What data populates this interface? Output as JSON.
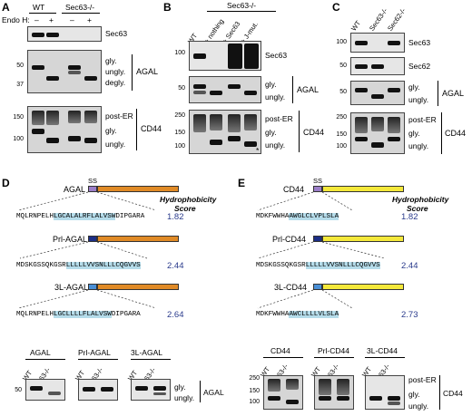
{
  "panels": {
    "A": {
      "label": "A",
      "lanes": {
        "wt": "WT",
        "ko": "Sec63-/-"
      },
      "endo_h": "Endo H:",
      "signs": [
        "–",
        "+",
        "–",
        "+"
      ],
      "blots": {
        "sec63": {
          "name": "Sec63"
        },
        "agal": {
          "name": "AGAL",
          "bands": [
            "gly.",
            "ungly.",
            "degly."
          ],
          "ticks": [
            "50",
            "37"
          ]
        },
        "cd44": {
          "name": "CD44",
          "bands": [
            "post-ER",
            "gly.",
            "ungly."
          ],
          "ticks": [
            "150",
            "100"
          ]
        }
      }
    },
    "B": {
      "label": "B",
      "header": "Sec63-/-",
      "lanes": [
        "WT",
        "+ nothing",
        "+ Sec63",
        "+ J-mut."
      ],
      "blots": {
        "sec63": {
          "name": "Sec63",
          "ticks": [
            "100"
          ]
        },
        "agal": {
          "name": "AGAL",
          "bands": [
            "gly.",
            "ungly."
          ],
          "ticks": [
            "50"
          ]
        },
        "cd44": {
          "name": "CD44",
          "bands": [
            "post-ER",
            "gly.",
            "ungly."
          ],
          "ticks": [
            "250",
            "150",
            "100"
          ],
          "marker": "*"
        }
      }
    },
    "C": {
      "label": "C",
      "lanes": [
        "WT",
        "Sec63-/-",
        "Sec62-/-"
      ],
      "blots": {
        "sec63": {
          "name": "Sec63",
          "ticks": [
            "100"
          ]
        },
        "sec62": {
          "name": "Sec62",
          "ticks": [
            "50"
          ]
        },
        "agal": {
          "name": "AGAL",
          "bands": [
            "gly.",
            "ungly."
          ],
          "ticks": [
            "50"
          ]
        },
        "cd44": {
          "name": "CD44",
          "bands": [
            "post-ER",
            "gly.",
            "ungly."
          ],
          "ticks": [
            "250",
            "150",
            "100"
          ]
        }
      }
    },
    "D": {
      "label": "D",
      "constructs": [
        {
          "name": "AGAL",
          "ss": "SS",
          "seq_pre": "MQLRNPELH",
          "seq_hl": "LGCALALRFLALVSW",
          "seq_post": "DIPGARA",
          "score": "1.82"
        },
        {
          "name": "Prl-AGAL",
          "seq_pre": "MDSKGSSQKGSR",
          "seq_hl": "LLLLLVVSNLLLCQGVVS",
          "seq_post": "",
          "score": "2.44"
        },
        {
          "name": "3L-AGAL",
          "seq_pre": "MQLRNPELH",
          "seq_hl": "LGCLLLLFLALVSW",
          "seq_post": "DIPGARA",
          "score": "2.64"
        }
      ],
      "score_header": [
        "Hydrophobicity",
        "Score"
      ],
      "blots": [
        {
          "title": "AGAL",
          "lanes": [
            "WT",
            "63-/-"
          ]
        },
        {
          "title": "Prl-AGAL",
          "lanes": [
            "WT",
            "63-/-"
          ]
        },
        {
          "title": "3L-AGAL",
          "lanes": [
            "WT",
            "63-/-"
          ]
        }
      ],
      "tick": "50",
      "bands": [
        "gly.",
        "ungly."
      ],
      "side_label": "AGAL"
    },
    "E": {
      "label": "E",
      "constructs": [
        {
          "name": "CD44",
          "ss": "SS",
          "seq_pre": "MDKFWWHA",
          "seq_hl": "AWGLCLVPLSLA",
          "seq_post": "",
          "score": "1.82"
        },
        {
          "name": "Prl-CD44",
          "seq_pre": "MDSKGSSQKGSR",
          "seq_hl": "LLLLLVVSNLLLCQGVVS",
          "seq_post": "",
          "score": "2.44"
        },
        {
          "name": "3L-CD44",
          "seq_pre": "MDKFWWHA",
          "seq_hl": "AWCLLLLVLSLA",
          "seq_post": "",
          "score": "2.73"
        }
      ],
      "score_header": [
        "Hydrophobicity",
        "Score"
      ],
      "blots": [
        {
          "title": "CD44",
          "lanes": [
            "WT",
            "63-/-"
          ]
        },
        {
          "title": "Prl-CD44",
          "lanes": [
            "WT",
            "63-/-"
          ]
        },
        {
          "title": "3L-CD44",
          "lanes": [
            "WT",
            "63-/-"
          ]
        }
      ],
      "ticks": [
        "250",
        "150",
        "100"
      ],
      "bands": [
        "post-ER",
        "gly.",
        "ungly."
      ],
      "side_label": "CD44"
    }
  },
  "colors": {
    "agal_bar": "#e08a26",
    "cd44_bar": "#f4e83a",
    "ss_native": "#9b7ec8",
    "ss_prl": "#1c2e86",
    "ss_3l": "#4a8fd6",
    "highlight": "#b5dcea",
    "score": "#2a3b8c"
  }
}
